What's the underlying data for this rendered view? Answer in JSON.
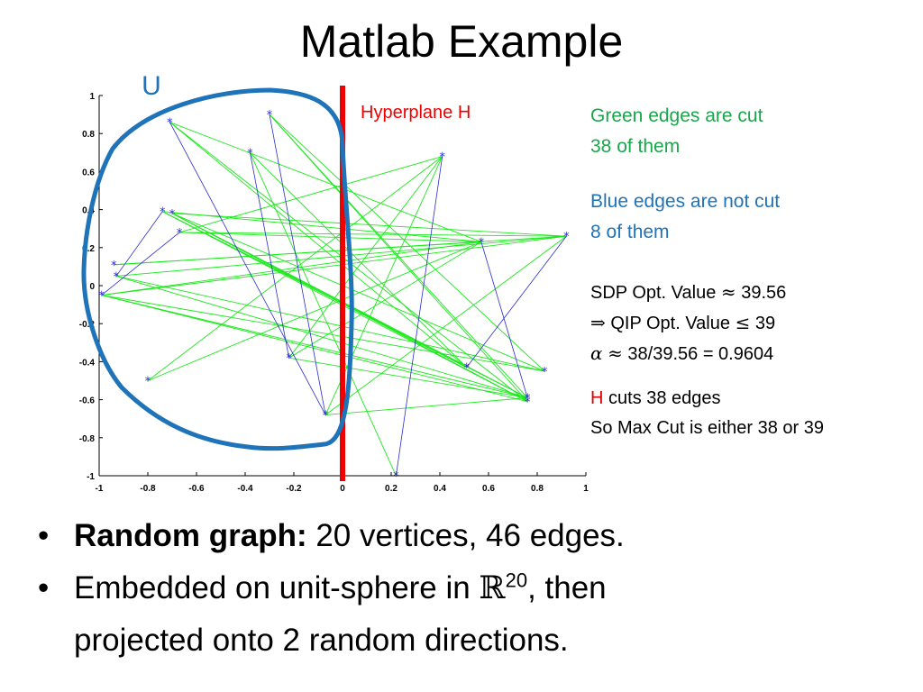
{
  "slide": {
    "title": "Matlab Example"
  },
  "annotations": {
    "set_label": "U",
    "hyperplane_label": "Hyperplane H",
    "green_line1": "Green edges are cut",
    "green_line2": "38 of them",
    "blue_line1": "Blue edges are not cut",
    "blue_line2": "8 of them",
    "sdp_prefix": "SDP Opt. Value",
    "approx_symbol": "≈",
    "sdp_value": "39.56",
    "implies_symbol": "⇒",
    "qip_prefix": "QIP Opt. Value",
    "leq_symbol": "≤",
    "qip_value": "39",
    "alpha_symbol": "α",
    "alpha_value": "38/39.56 = 0.9604",
    "h_letter": "H",
    "h_rest": "cuts 38 edges",
    "maxcut_line": "So Max Cut is either 38 or 39"
  },
  "bullets": {
    "b1_bold": "Random graph:",
    "b1_rest": "20 vertices, 46 edges.",
    "b2_text": "Embedded on unit-sphere in",
    "b2_set": "ℝ",
    "b2_sup": "20",
    "b2_tail": ", then",
    "b2_line2": "projected onto 2 random directions."
  },
  "colors": {
    "cut_edge": "#1de81d",
    "uncut_edge": "#2a2ad0",
    "hyperplane": "#ee0000",
    "set_curve": "#1f73b8",
    "green_text": "#1aa64a",
    "blue_text": "#1f73b8"
  },
  "chart_data": {
    "type": "scatter",
    "xlim": [
      -1,
      1
    ],
    "ylim": [
      -1,
      1
    ],
    "x_ticks": [
      "-1",
      "-0.8",
      "-0.6",
      "-0.4",
      "-0.2",
      "0",
      "0.2",
      "0.4",
      "0.6",
      "0.8",
      "1"
    ],
    "y_ticks": [
      "1",
      "0.8",
      "0.6",
      "0.4",
      "0.2",
      "0",
      "-0.2",
      "-0.4",
      "-0.6",
      "-0.8",
      "-1"
    ],
    "hyperplane_x": 0,
    "vertices": [
      [
        -0.71,
        0.86
      ],
      [
        -0.3,
        0.9
      ],
      [
        -0.38,
        0.7
      ],
      [
        0.41,
        0.68
      ],
      [
        -0.74,
        0.39
      ],
      [
        -0.7,
        0.38
      ],
      [
        -0.67,
        0.28
      ],
      [
        0.57,
        0.23
      ],
      [
        0.92,
        0.26
      ],
      [
        -0.94,
        0.11
      ],
      [
        -0.93,
        0.05
      ],
      [
        -0.99,
        -0.05
      ],
      [
        -0.8,
        -0.5
      ],
      [
        -0.22,
        -0.38
      ],
      [
        -0.07,
        -0.68
      ],
      [
        0.51,
        -0.43
      ],
      [
        0.83,
        -0.45
      ],
      [
        0.76,
        -0.59
      ],
      [
        0.76,
        -0.61
      ],
      [
        0.22,
        -1.0
      ]
    ],
    "cut_edges": [
      [
        0,
        18
      ],
      [
        0,
        15
      ],
      [
        1,
        16
      ],
      [
        1,
        17
      ],
      [
        2,
        19
      ],
      [
        2,
        15
      ],
      [
        4,
        17
      ],
      [
        4,
        18
      ],
      [
        4,
        15
      ],
      [
        5,
        17
      ],
      [
        5,
        18
      ],
      [
        5,
        15
      ],
      [
        5,
        8
      ],
      [
        6,
        8
      ],
      [
        6,
        7
      ],
      [
        9,
        8
      ],
      [
        9,
        7
      ],
      [
        10,
        17
      ],
      [
        10,
        16
      ],
      [
        11,
        8
      ],
      [
        11,
        7
      ],
      [
        11,
        17
      ],
      [
        11,
        18
      ],
      [
        12,
        3
      ],
      [
        12,
        7
      ],
      [
        13,
        3
      ],
      [
        13,
        17
      ],
      [
        14,
        8
      ],
      [
        14,
        3
      ],
      [
        4,
        7
      ],
      [
        0,
        7
      ],
      [
        3,
        6
      ],
      [
        10,
        8
      ],
      [
        11,
        16
      ],
      [
        1,
        18
      ],
      [
        5,
        16
      ],
      [
        13,
        7
      ],
      [
        14,
        17
      ]
    ],
    "uncut_edges": [
      [
        0,
        14
      ],
      [
        2,
        13
      ],
      [
        1,
        14
      ],
      [
        4,
        10
      ],
      [
        6,
        11
      ],
      [
        3,
        19
      ],
      [
        7,
        17
      ],
      [
        8,
        15
      ]
    ]
  }
}
